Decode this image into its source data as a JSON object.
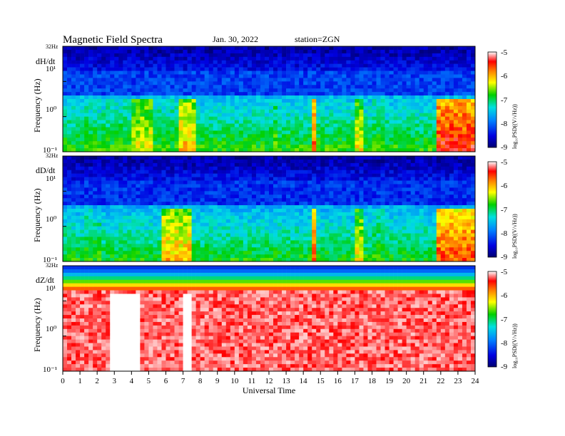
{
  "header": {
    "title": "Magnetic Field Spectra",
    "date": "Jan. 30, 2022",
    "station": "station=ZGN"
  },
  "chart_data": {
    "type": "heatmap",
    "title": "Magnetic Field Spectra",
    "xlabel": "Universal Time",
    "xlim": [
      0,
      24
    ],
    "x_ticks": [
      "0",
      "1",
      "2",
      "3",
      "4",
      "5",
      "6",
      "7",
      "8",
      "9",
      "10",
      "11",
      "12",
      "13",
      "14",
      "15",
      "16",
      "17",
      "18",
      "19",
      "20",
      "21",
      "22",
      "23",
      "24"
    ],
    "panels": [
      {
        "label": "dH/dt",
        "ylabel": "Frequency (Hz)",
        "yscale": "log",
        "top_label": "32Hz",
        "y_ticks": [
          "10¹",
          "10⁰",
          "10⁻¹"
        ],
        "colorbar_label": "log₁₀PSD((V/√Hz))",
        "colorbar_ticks": [
          "-5",
          "-6",
          "-7",
          "-8",
          "-9"
        ],
        "colorbar_range": [
          -9,
          -5
        ],
        "background_level": 0.2,
        "events": [
          {
            "t0": 0.3,
            "t1": 1.0,
            "level": 0.5
          },
          {
            "t0": 1.3,
            "t1": 4.2,
            "level": 0.55
          },
          {
            "t0": 4.0,
            "t1": 5.3,
            "level": 0.7
          },
          {
            "t0": 5.3,
            "t1": 6.7,
            "level": 0.55
          },
          {
            "t0": 6.8,
            "t1": 7.8,
            "level": 0.75
          },
          {
            "t0": 12.2,
            "t1": 12.4,
            "level": 0.6
          },
          {
            "t0": 14.4,
            "t1": 14.7,
            "level": 0.85
          },
          {
            "t0": 16.9,
            "t1": 17.6,
            "level": 0.7
          },
          {
            "t0": 17.9,
            "t1": 18.8,
            "level": 0.55
          },
          {
            "t0": 21.8,
            "t1": 24.0,
            "level": 0.9
          }
        ]
      },
      {
        "label": "dD/dt",
        "ylabel": "Frequency (Hz)",
        "yscale": "log",
        "top_label": "32Hz",
        "y_ticks": [
          "10¹",
          "10⁰",
          "10⁻¹"
        ],
        "colorbar_label": "log₁₀PSD((V/√Hz))",
        "colorbar_ticks": [
          "-5",
          "-6",
          "-7",
          "-8",
          "-9"
        ],
        "colorbar_range": [
          -9,
          -5
        ],
        "background_level": 0.18,
        "events": [
          {
            "t0": 1.3,
            "t1": 2.3,
            "level": 0.55
          },
          {
            "t0": 3.3,
            "t1": 5.0,
            "level": 0.5
          },
          {
            "t0": 5.8,
            "t1": 7.5,
            "level": 0.75
          },
          {
            "t0": 12.2,
            "t1": 12.5,
            "level": 0.45
          },
          {
            "t0": 14.4,
            "t1": 14.7,
            "level": 0.85
          },
          {
            "t0": 16.9,
            "t1": 17.6,
            "level": 0.7
          },
          {
            "t0": 17.9,
            "t1": 18.8,
            "level": 0.55
          },
          {
            "t0": 21.8,
            "t1": 24.0,
            "level": 0.85
          }
        ]
      },
      {
        "label": "dZ/dt",
        "ylabel": "Frequency (Hz)",
        "yscale": "log",
        "top_label": "32Hz",
        "y_ticks": [
          "10¹",
          "10⁰",
          "10⁻¹"
        ],
        "colorbar_label": "log₁₀PSD((V/√Hz))",
        "colorbar_ticks": [
          "-5",
          "-6",
          "-7",
          "-8",
          "-9"
        ],
        "colorbar_range": [
          -9,
          -5
        ],
        "background_level": 0.9,
        "saturated_below_hz": 4,
        "white_gaps": [
          {
            "t0": 2.7,
            "t1": 4.4
          },
          {
            "t0": 7.0,
            "t1": 7.4
          }
        ]
      }
    ]
  }
}
